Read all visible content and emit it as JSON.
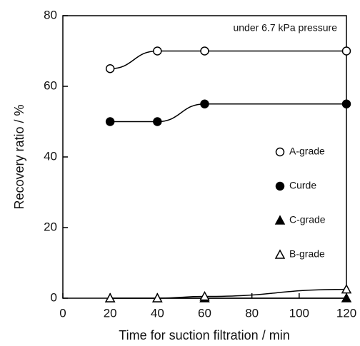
{
  "chart_data": {
    "type": "line",
    "annotation": "under 6.7 kPa pressure",
    "x_label": "Time for suction filtration / min",
    "y_label": "Recovery ratio / %",
    "x": [
      20,
      40,
      60,
      120
    ],
    "series": [
      {
        "name": "A-grade",
        "color": "#000000",
        "marker": "circle",
        "filled": false,
        "values": [
          65,
          70,
          70,
          70
        ]
      },
      {
        "name": "Curde",
        "color": "#000000",
        "marker": "circle",
        "filled": true,
        "values": [
          50,
          50,
          55,
          55
        ]
      },
      {
        "name": "C-grade",
        "color": "#000000",
        "marker": "triangle",
        "filled": true,
        "values": [
          0,
          0,
          0,
          0
        ]
      },
      {
        "name": "B-grade",
        "color": "#000000",
        "marker": "triangle",
        "filled": false,
        "values": [
          0,
          0,
          0.5,
          2.5
        ]
      }
    ],
    "xlim": [
      0,
      120
    ],
    "xticks": [
      0,
      20,
      40,
      60,
      80,
      100,
      120
    ],
    "ylim": [
      0,
      80
    ],
    "yticks": [
      0,
      20,
      40,
      60,
      80
    ],
    "grid": false
  }
}
